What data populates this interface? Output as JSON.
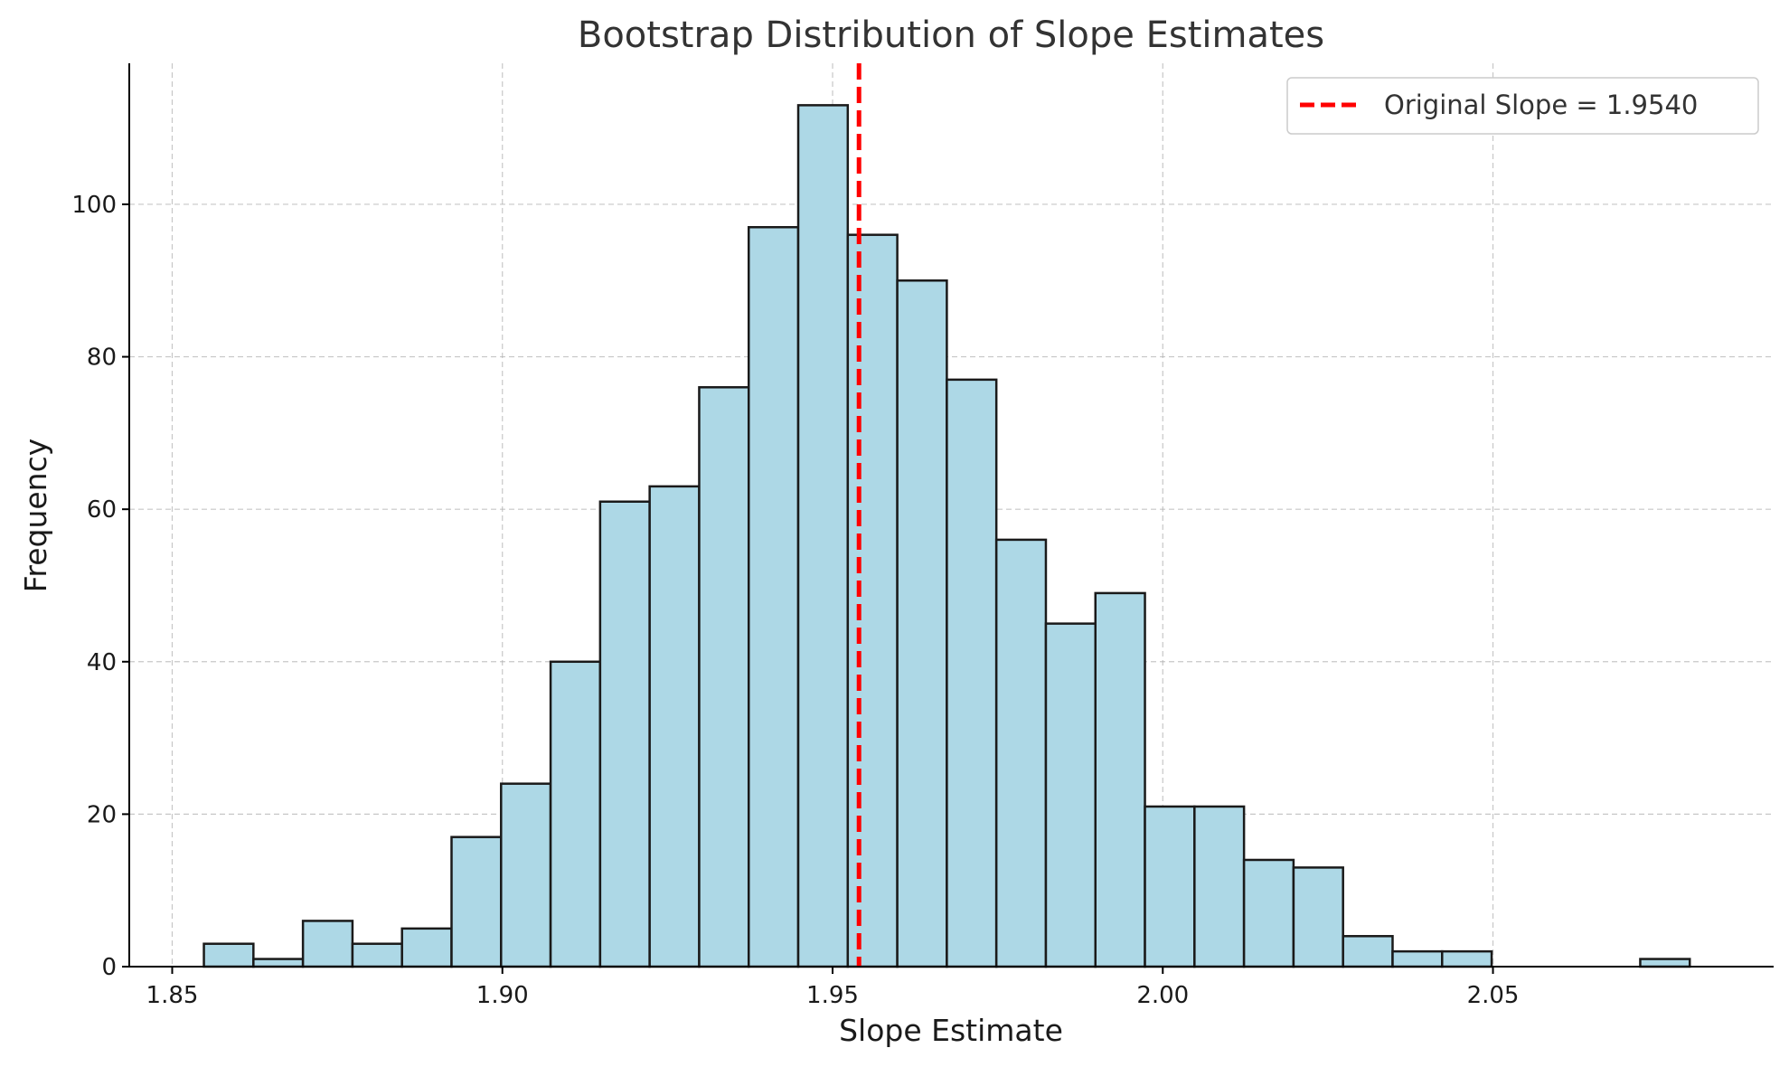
{
  "chart_data": {
    "type": "bar",
    "title": "Bootstrap Distribution of Slope Estimates",
    "xlabel": "Slope Estimate",
    "ylabel": "Frequency",
    "xlim": [
      1.8435,
      2.0925
    ],
    "ylim": [
      0,
      118.5
    ],
    "xticks": [
      {
        "value": 1.85,
        "label": "1.85"
      },
      {
        "value": 1.9,
        "label": "1.90"
      },
      {
        "value": 1.95,
        "label": "1.95"
      },
      {
        "value": 2.0,
        "label": "2.00"
      },
      {
        "value": 2.05,
        "label": "2.05"
      }
    ],
    "yticks": [
      {
        "value": 0,
        "label": "0"
      },
      {
        "value": 20,
        "label": "20"
      },
      {
        "value": 40,
        "label": "40"
      },
      {
        "value": 60,
        "label": "60"
      },
      {
        "value": 80,
        "label": "80"
      },
      {
        "value": 100,
        "label": "100"
      }
    ],
    "bin_start": 1.8548,
    "bin_width": 0.0075,
    "values": [
      3,
      1,
      6,
      3,
      5,
      17,
      24,
      40,
      61,
      63,
      76,
      97,
      113,
      96,
      90,
      77,
      56,
      45,
      49,
      21,
      21,
      14,
      13,
      4,
      2,
      2,
      0,
      0,
      0,
      1
    ],
    "bar_color": "#add8e6",
    "bar_edge_color": "#1a1a1a",
    "reference_line": {
      "value": 1.954,
      "color": "#ff0000",
      "style": "dashed"
    },
    "legend": {
      "label": "Original Slope = 1.9540",
      "position": "top-right"
    },
    "grid": true
  }
}
